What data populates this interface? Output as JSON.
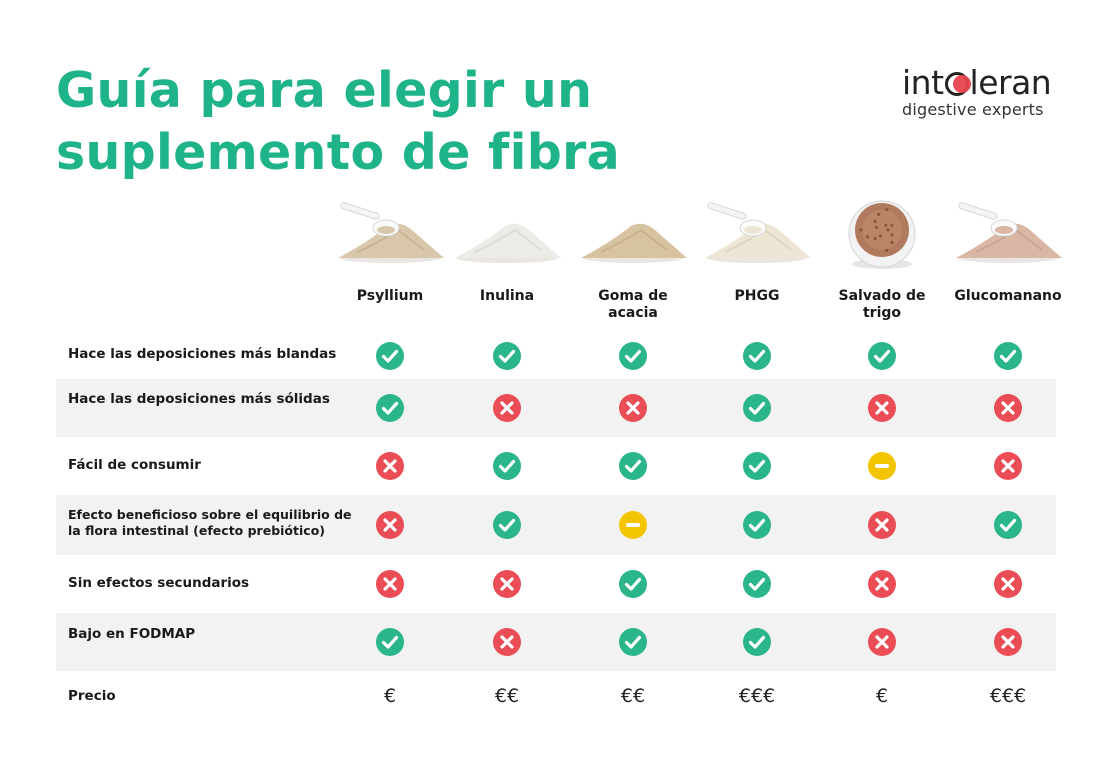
{
  "title_line1": "Guía para elegir un",
  "title_line2": "suplemento de fibra",
  "logo": {
    "word_a": "int",
    "word_b": "leran",
    "tagline": "digestive experts"
  },
  "colors": {
    "yes": "#2bb58a",
    "no": "#ea4d55",
    "partial": "#f3c400",
    "title": "#1fb38a"
  },
  "products": [
    {
      "name": "Psyllium",
      "image": "scoop-powder-beige"
    },
    {
      "name": "Inulina",
      "image": "powder-white"
    },
    {
      "name": "Goma de acacia",
      "image": "powder-sand"
    },
    {
      "name": "PHGG",
      "image": "scoop-powder-cream"
    },
    {
      "name": "Salvado de trigo",
      "image": "bowl-bran"
    },
    {
      "name": "Glucomanano",
      "image": "scoop-powder-pink"
    }
  ],
  "rows": [
    {
      "label": "Hace las deposiciones más blandas",
      "values": [
        "yes",
        "yes",
        "yes",
        "yes",
        "yes",
        "yes"
      ]
    },
    {
      "label": "Hace las deposiciones más sólidas",
      "values": [
        "yes",
        "no",
        "no",
        "yes",
        "no",
        "no"
      ]
    },
    {
      "label": "Fácil de consumir",
      "values": [
        "no",
        "yes",
        "yes",
        "yes",
        "partial",
        "no"
      ]
    },
    {
      "label": "Efecto beneficioso sobre el equilibrio de la flora intestinal (efecto prebiótico)",
      "values": [
        "no",
        "yes",
        "partial",
        "yes",
        "no",
        "yes"
      ]
    },
    {
      "label": "Sin efectos secundarios",
      "values": [
        "no",
        "no",
        "yes",
        "yes",
        "no",
        "no"
      ]
    },
    {
      "label": "Bajo en FODMAP",
      "values": [
        "yes",
        "no",
        "yes",
        "yes",
        "no",
        "no"
      ]
    }
  ],
  "price_row": {
    "label": "Precio",
    "values": [
      "€",
      "€€",
      "€€",
      "€€€",
      "€",
      "€€€"
    ]
  }
}
